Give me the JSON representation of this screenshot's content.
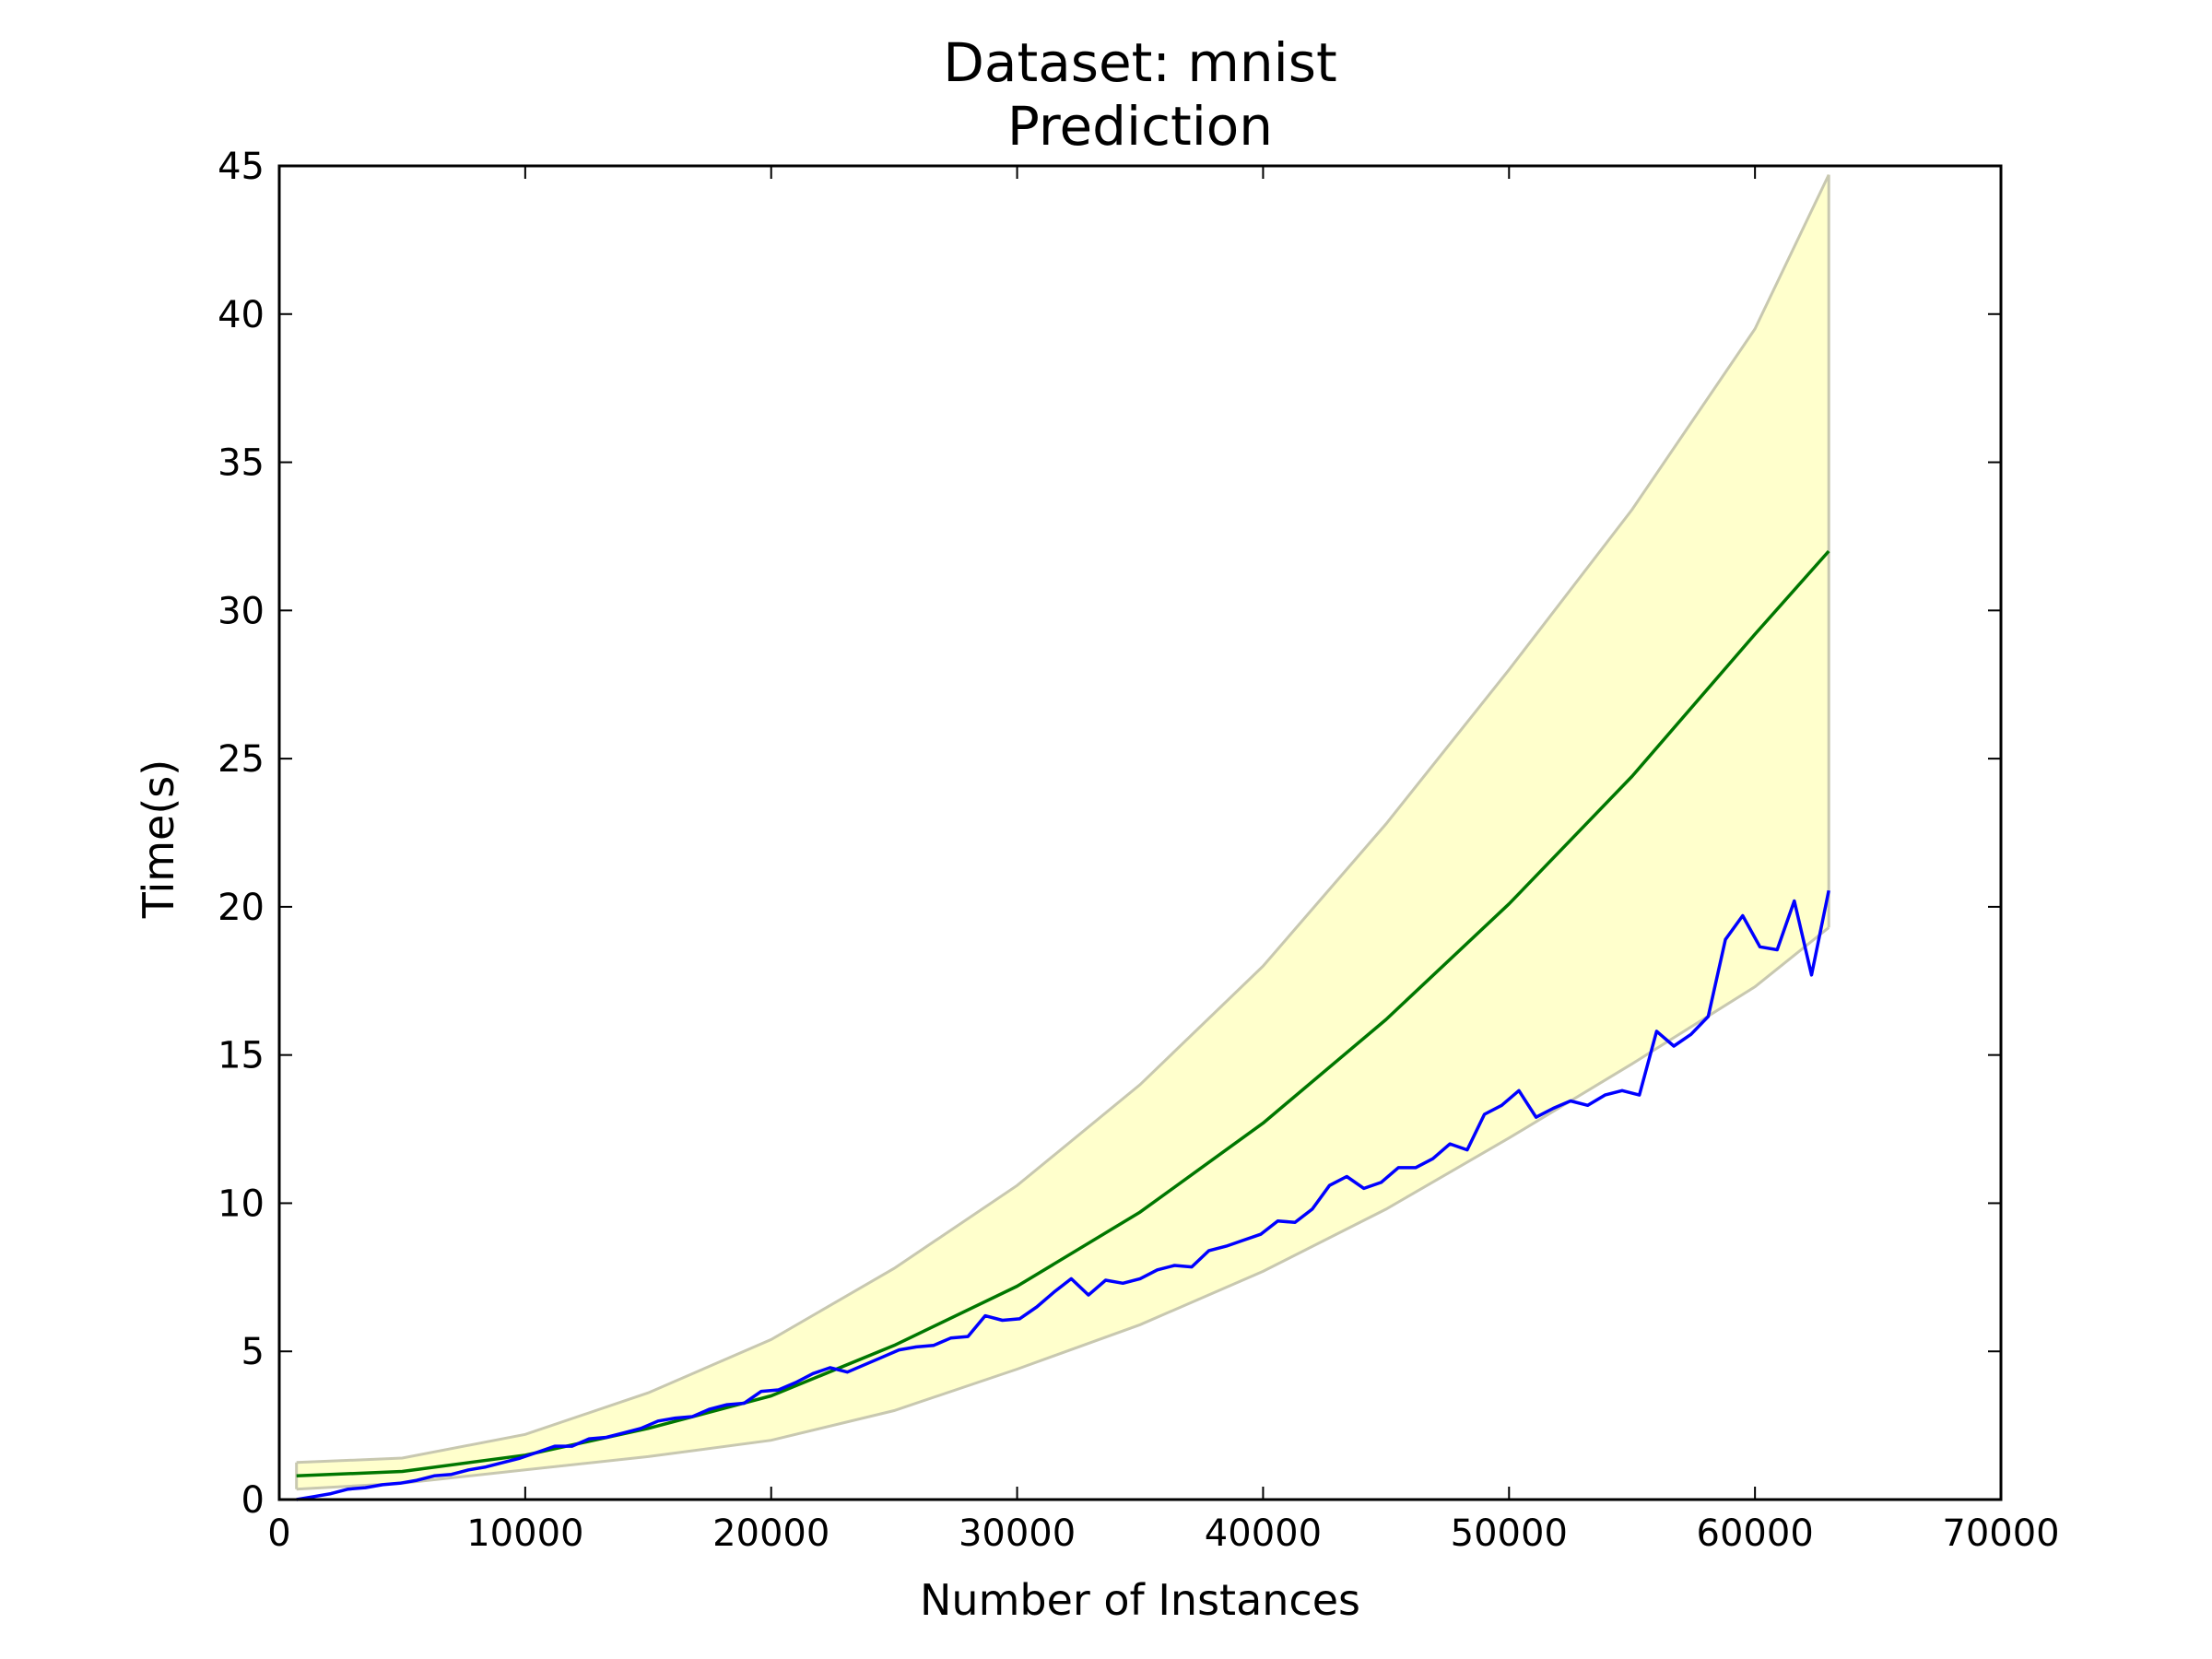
{
  "chart_data": {
    "type": "line",
    "title": [
      "Dataset: mnist",
      "Prediction"
    ],
    "xlabel": "Number of Instances",
    "ylabel": "Time(s)",
    "xlim": [
      0,
      70000
    ],
    "ylim": [
      0,
      45
    ],
    "xticks": [
      "0",
      "10000",
      "20000",
      "30000",
      "40000",
      "50000",
      "60000",
      "70000"
    ],
    "yticks": [
      "0",
      "5",
      "10",
      "15",
      "20",
      "25",
      "30",
      "35",
      "40",
      "45"
    ],
    "grid": false,
    "legend": null,
    "colors": {
      "measured": "#0000ff",
      "fit": "#007700",
      "band_fill": "#ffffcc",
      "band_edge": "#c8c8b0",
      "axes": "#000000"
    },
    "band": {
      "x": [
        700,
        5000,
        10000,
        15000,
        20000,
        25000,
        30000,
        35000,
        40000,
        45000,
        50000,
        55000,
        60000,
        63000
      ],
      "lower": [
        0.35,
        0.55,
        1.0,
        1.45,
        2.0,
        3.0,
        4.4,
        5.9,
        7.7,
        9.8,
        12.2,
        14.7,
        17.3,
        19.3
      ],
      "upper": [
        1.25,
        1.4,
        2.2,
        3.6,
        5.4,
        7.8,
        10.6,
        14.0,
        18.0,
        22.8,
        28.0,
        33.4,
        39.5,
        44.7
      ]
    },
    "series": [
      {
        "key": "fit",
        "x": [
          700,
          5000,
          10000,
          15000,
          20000,
          25000,
          30000,
          35000,
          40000,
          45000,
          50000,
          55000,
          60000,
          63000
        ],
        "y": [
          0.8,
          0.95,
          1.5,
          2.4,
          3.5,
          5.2,
          7.2,
          9.7,
          12.7,
          16.2,
          20.1,
          24.4,
          29.2,
          32.0
        ]
      },
      {
        "key": "measured",
        "x": [
          700,
          1400,
          2100,
          2800,
          3500,
          4200,
          4900,
          5600,
          6300,
          7000,
          7700,
          8400,
          9100,
          9800,
          10500,
          11200,
          11900,
          12600,
          13300,
          14000,
          14700,
          15400,
          16100,
          16800,
          17500,
          18200,
          18900,
          19600,
          20300,
          21000,
          21700,
          22400,
          23100,
          23800,
          24500,
          25200,
          25900,
          26600,
          27300,
          28000,
          28700,
          29400,
          30100,
          30800,
          31500,
          32200,
          32900,
          33600,
          34300,
          35000,
          35700,
          36400,
          37100,
          37800,
          38500,
          39200,
          39900,
          40600,
          41300,
          42000,
          42700,
          43400,
          44100,
          44800,
          45500,
          46200,
          46900,
          47600,
          48300,
          49000,
          49700,
          50400,
          51100,
          51800,
          52500,
          53200,
          53900,
          54600,
          55300,
          56000,
          56700,
          57400,
          58100,
          58800,
          59500,
          60200,
          60900,
          61600,
          62300,
          63000
        ],
        "y": [
          0.0,
          0.1,
          0.2,
          0.35,
          0.4,
          0.5,
          0.55,
          0.65,
          0.8,
          0.85,
          1.0,
          1.1,
          1.25,
          1.4,
          1.6,
          1.8,
          1.8,
          2.05,
          2.1,
          2.25,
          2.4,
          2.65,
          2.75,
          2.8,
          3.05,
          3.2,
          3.25,
          3.65,
          3.7,
          3.95,
          4.25,
          4.45,
          4.3,
          4.55,
          4.8,
          5.05,
          5.15,
          5.2,
          5.45,
          5.5,
          6.2,
          6.05,
          6.1,
          6.5,
          7.0,
          7.45,
          6.9,
          7.4,
          7.3,
          7.45,
          7.75,
          7.9,
          7.85,
          8.4,
          8.55,
          8.75,
          8.95,
          9.4,
          9.35,
          9.8,
          10.6,
          10.9,
          10.5,
          10.7,
          11.2,
          11.2,
          11.5,
          12.0,
          11.8,
          13.0,
          13.3,
          13.8,
          12.9,
          13.2,
          13.45,
          13.3,
          13.65,
          13.8,
          13.65,
          15.8,
          15.3,
          15.7,
          16.3,
          18.9,
          19.7,
          18.65,
          18.55,
          20.2,
          17.7,
          20.55
        ]
      }
    ]
  }
}
